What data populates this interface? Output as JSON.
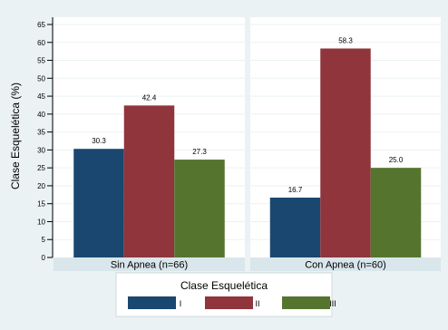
{
  "chart_data": {
    "type": "bar",
    "ylabel": "Clase Esquelética (%)",
    "ylim": [
      0,
      65
    ],
    "yticks": [
      0,
      5,
      10,
      15,
      20,
      25,
      30,
      35,
      40,
      45,
      50,
      55,
      60,
      65
    ],
    "grid": true,
    "legend": {
      "title": "Clase Esquelética",
      "placement": "bottom",
      "entries": [
        "I",
        "II",
        "III"
      ]
    },
    "panels": [
      {
        "label": "Sin Apnea (n=66)",
        "series": [
          {
            "category": "I",
            "value": 30.3,
            "label": "30.3"
          },
          {
            "category": "II",
            "value": 42.4,
            "label": "42.4"
          },
          {
            "category": "III",
            "value": 27.3,
            "label": "27.3"
          }
        ]
      },
      {
        "label": "Con Apnea (n=60)",
        "series": [
          {
            "category": "I",
            "value": 16.7,
            "label": "16.7"
          },
          {
            "category": "II",
            "value": 58.3,
            "label": "58.3"
          },
          {
            "category": "III",
            "value": 25.0,
            "label": "25.0"
          }
        ]
      }
    ],
    "colors": {
      "I": "#1a476f",
      "II": "#90353b",
      "III": "#55752f",
      "background": "#eaf2f3",
      "strip": "#d9e6eb"
    }
  }
}
